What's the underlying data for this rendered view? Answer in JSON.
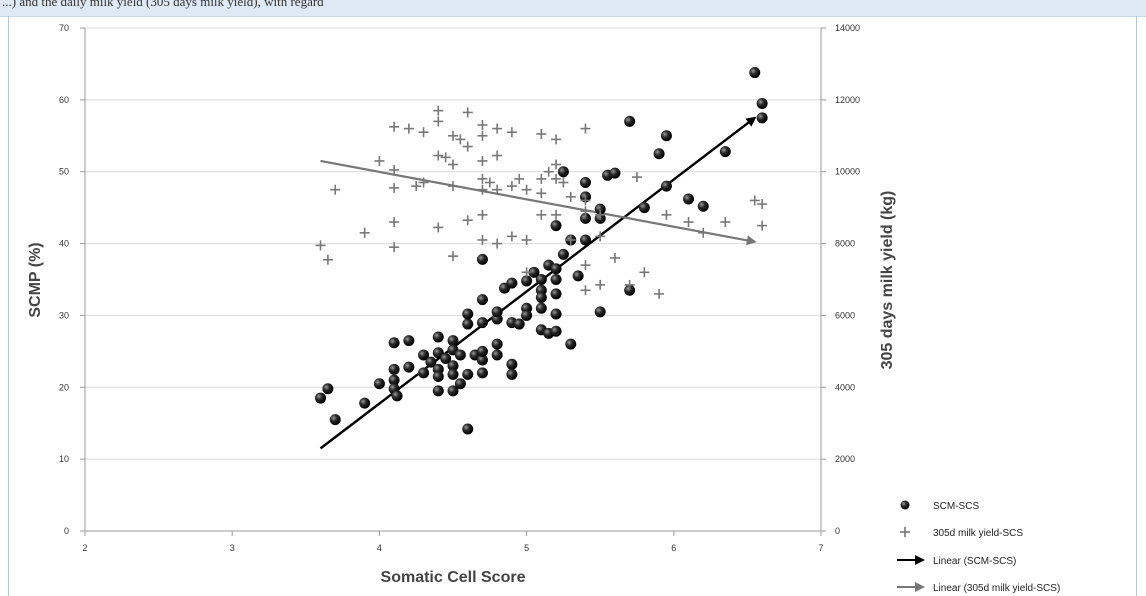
{
  "caption_fragment": "...) and the daily milk yield (305 days milk yield), with regard",
  "chart_data": {
    "type": "scatter",
    "xlabel": "Somatic Cell Score",
    "ylabel": "SCMP (%)",
    "y2label": "305 days milk yield (kg)",
    "xlim": [
      2,
      7
    ],
    "ylim": [
      0,
      70
    ],
    "y2lim": [
      0,
      14000
    ],
    "x_ticks": [
      "2",
      "3",
      "4",
      "5",
      "6",
      "7"
    ],
    "y_ticks": [
      "0",
      "10",
      "20",
      "30",
      "40",
      "50",
      "60",
      "70"
    ],
    "y2_ticks": [
      "0",
      "2000",
      "4000",
      "6000",
      "8000",
      "10000",
      "12000",
      "14000"
    ],
    "grid": "horizontal",
    "legend_position": "bottom-right",
    "series": [
      {
        "name": "SCM-SCS",
        "marker": "sphere",
        "color": "#1a1a1a",
        "axis": "left",
        "points": [
          [
            3.6,
            18.5
          ],
          [
            3.65,
            19.8
          ],
          [
            3.7,
            15.5
          ],
          [
            3.9,
            17.8
          ],
          [
            4.0,
            20.5
          ],
          [
            4.1,
            26.2
          ],
          [
            4.1,
            22.5
          ],
          [
            4.1,
            21.0
          ],
          [
            4.1,
            19.8
          ],
          [
            4.12,
            18.8
          ],
          [
            4.2,
            22.8
          ],
          [
            4.2,
            26.5
          ],
          [
            4.3,
            24.5
          ],
          [
            4.3,
            22.0
          ],
          [
            4.35,
            23.5
          ],
          [
            4.4,
            27.0
          ],
          [
            4.4,
            24.8
          ],
          [
            4.4,
            22.5
          ],
          [
            4.4,
            21.5
          ],
          [
            4.4,
            19.5
          ],
          [
            4.45,
            24.0
          ],
          [
            4.5,
            26.5
          ],
          [
            4.5,
            25.2
          ],
          [
            4.5,
            23.0
          ],
          [
            4.5,
            21.8
          ],
          [
            4.5,
            19.5
          ],
          [
            4.55,
            20.5
          ],
          [
            4.55,
            24.5
          ],
          [
            4.6,
            21.8
          ],
          [
            4.6,
            14.2
          ],
          [
            4.6,
            28.8
          ],
          [
            4.6,
            30.2
          ],
          [
            4.65,
            24.5
          ],
          [
            4.7,
            23.8
          ],
          [
            4.7,
            22.0
          ],
          [
            4.7,
            25.0
          ],
          [
            4.7,
            29.0
          ],
          [
            4.7,
            32.2
          ],
          [
            4.7,
            37.8
          ],
          [
            4.8,
            24.5
          ],
          [
            4.8,
            26.0
          ],
          [
            4.8,
            29.5
          ],
          [
            4.8,
            30.5
          ],
          [
            4.85,
            33.8
          ],
          [
            4.9,
            34.5
          ],
          [
            4.9,
            29.0
          ],
          [
            4.9,
            23.2
          ],
          [
            4.9,
            21.8
          ],
          [
            4.95,
            28.8
          ],
          [
            5.0,
            31.0
          ],
          [
            5.0,
            34.8
          ],
          [
            5.0,
            30.0
          ],
          [
            5.05,
            36.0
          ],
          [
            5.1,
            33.5
          ],
          [
            5.1,
            35.0
          ],
          [
            5.1,
            32.5
          ],
          [
            5.1,
            31.0
          ],
          [
            5.1,
            28.0
          ],
          [
            5.15,
            37.0
          ],
          [
            5.15,
            27.5
          ],
          [
            5.2,
            36.5
          ],
          [
            5.2,
            35.0
          ],
          [
            5.2,
            33.0
          ],
          [
            5.2,
            30.2
          ],
          [
            5.2,
            27.8
          ],
          [
            5.2,
            42.5
          ],
          [
            5.25,
            38.5
          ],
          [
            5.3,
            26.0
          ],
          [
            5.3,
            40.5
          ],
          [
            5.35,
            35.5
          ],
          [
            5.4,
            40.5
          ],
          [
            5.4,
            43.5
          ],
          [
            5.4,
            46.5
          ],
          [
            5.4,
            48.5
          ],
          [
            5.5,
            44.8
          ],
          [
            5.5,
            43.5
          ],
          [
            5.5,
            30.5
          ],
          [
            5.55,
            49.5
          ],
          [
            5.6,
            49.8
          ],
          [
            5.7,
            33.5
          ],
          [
            5.7,
            57.0
          ],
          [
            5.8,
            45.0
          ],
          [
            5.9,
            52.5
          ],
          [
            5.95,
            55.0
          ],
          [
            5.95,
            48.0
          ],
          [
            6.1,
            46.2
          ],
          [
            6.2,
            45.2
          ],
          [
            6.35,
            52.8
          ],
          [
            6.55,
            63.8
          ],
          [
            6.6,
            59.5
          ],
          [
            6.6,
            57.5
          ],
          [
            5.25,
            50.0
          ]
        ]
      },
      {
        "name": "305d milk yield-SCS",
        "marker": "plus",
        "color": "#777777",
        "axis": "right",
        "points": [
          [
            3.6,
            7950
          ],
          [
            3.65,
            7550
          ],
          [
            3.7,
            9500
          ],
          [
            3.9,
            8300
          ],
          [
            4.0,
            10300
          ],
          [
            4.1,
            11250
          ],
          [
            4.1,
            10050
          ],
          [
            4.1,
            9550
          ],
          [
            4.1,
            8600
          ],
          [
            4.1,
            7900
          ],
          [
            4.2,
            11200
          ],
          [
            4.25,
            9600
          ],
          [
            4.3,
            9700
          ],
          [
            4.3,
            11100
          ],
          [
            4.4,
            11400
          ],
          [
            4.4,
            11700
          ],
          [
            4.4,
            10450
          ],
          [
            4.4,
            8450
          ],
          [
            4.45,
            10400
          ],
          [
            4.5,
            11000
          ],
          [
            4.5,
            10200
          ],
          [
            4.5,
            9600
          ],
          [
            4.5,
            7650
          ],
          [
            4.55,
            10900
          ],
          [
            4.6,
            11650
          ],
          [
            4.6,
            10700
          ],
          [
            4.6,
            8650
          ],
          [
            4.7,
            11300
          ],
          [
            4.7,
            11000
          ],
          [
            4.7,
            10300
          ],
          [
            4.7,
            9800
          ],
          [
            4.7,
            9500
          ],
          [
            4.7,
            8800
          ],
          [
            4.7,
            8100
          ],
          [
            4.75,
            9700
          ],
          [
            4.8,
            11200
          ],
          [
            4.8,
            10450
          ],
          [
            4.8,
            9500
          ],
          [
            4.8,
            8000
          ],
          [
            4.9,
            11100
          ],
          [
            4.9,
            9600
          ],
          [
            4.9,
            8200
          ],
          [
            4.95,
            9800
          ],
          [
            5.0,
            9500
          ],
          [
            5.0,
            8100
          ],
          [
            5.0,
            7200
          ],
          [
            5.1,
            11050
          ],
          [
            5.1,
            9800
          ],
          [
            5.1,
            9400
          ],
          [
            5.1,
            8800
          ],
          [
            5.15,
            10000
          ],
          [
            5.2,
            10900
          ],
          [
            5.2,
            10200
          ],
          [
            5.2,
            9800
          ],
          [
            5.2,
            8800
          ],
          [
            5.25,
            9700
          ],
          [
            5.3,
            9300
          ],
          [
            5.3,
            8100
          ],
          [
            5.4,
            11200
          ],
          [
            5.4,
            9200
          ],
          [
            5.4,
            8900
          ],
          [
            5.4,
            7400
          ],
          [
            5.4,
            6700
          ],
          [
            5.5,
            8800
          ],
          [
            5.5,
            8200
          ],
          [
            5.5,
            6850
          ],
          [
            5.6,
            7600
          ],
          [
            5.7,
            6850
          ],
          [
            5.75,
            9850
          ],
          [
            5.8,
            7200
          ],
          [
            5.9,
            6600
          ],
          [
            5.95,
            8800
          ],
          [
            6.1,
            8600
          ],
          [
            6.2,
            8300
          ],
          [
            6.35,
            8600
          ],
          [
            6.55,
            9200
          ],
          [
            6.6,
            8500
          ],
          [
            6.6,
            9100
          ]
        ]
      }
    ],
    "trendlines": [
      {
        "name": "Linear (SCM-SCS)",
        "color": "#000000",
        "axis": "left",
        "from": [
          3.6,
          11.5
        ],
        "to": [
          6.55,
          57.5
        ]
      },
      {
        "name": "Linear (305d milk yield-SCS)",
        "color": "#777777",
        "axis": "right",
        "from": [
          3.6,
          10300
        ],
        "to": [
          6.55,
          8050
        ]
      }
    ],
    "legend": [
      {
        "label": "SCM-SCS",
        "symbol": "sphere"
      },
      {
        "label": "305d milk yield-SCS",
        "symbol": "plus"
      },
      {
        "label": "Linear (SCM-SCS)",
        "symbol": "arrow-black"
      },
      {
        "label": "Linear (305d milk yield-SCS)",
        "symbol": "arrow-gray"
      }
    ]
  }
}
